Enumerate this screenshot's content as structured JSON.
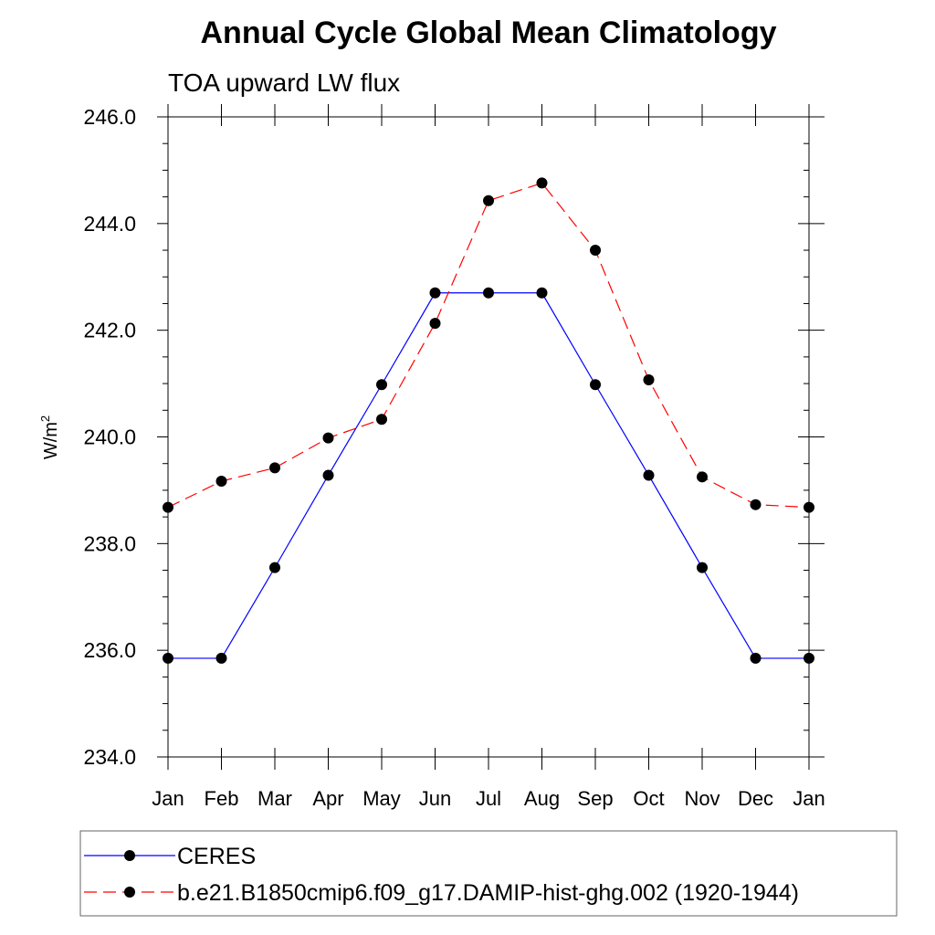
{
  "chart_data": {
    "type": "line",
    "title": "Annual Cycle Global Mean Climatology",
    "subtitle": "TOA upward LW flux",
    "ylabel": "W/m",
    "ylabel_sup": "2",
    "xlabel": "",
    "categories": [
      "Jan",
      "Feb",
      "Mar",
      "Apr",
      "May",
      "Jun",
      "Jul",
      "Aug",
      "Sep",
      "Oct",
      "Nov",
      "Dec",
      "Jan"
    ],
    "ylim": [
      234.0,
      246.0
    ],
    "yticks": [
      234.0,
      236.0,
      238.0,
      240.0,
      242.0,
      244.0,
      246.0
    ],
    "ytick_labels": [
      "234.0",
      "236.0",
      "238.0",
      "240.0",
      "242.0",
      "244.0",
      "246.0"
    ],
    "grid": false,
    "legend_position": "bottom",
    "series": [
      {
        "name": "CERES",
        "color": "#0000ff",
        "dash": "solid",
        "values": [
          235.85,
          235.85,
          237.55,
          239.28,
          240.98,
          242.7,
          242.7,
          242.7,
          240.98,
          239.28,
          237.55,
          235.85,
          235.85
        ]
      },
      {
        "name": "b.e21.B1850cmip6.f09_g17.DAMIP-hist-ghg.002 (1920-1944)",
        "color": "#ff0000",
        "dash": "dashed",
        "values": [
          238.68,
          239.17,
          239.42,
          239.98,
          240.33,
          242.13,
          244.43,
          244.76,
          243.5,
          241.07,
          239.25,
          238.73,
          238.68
        ]
      }
    ]
  }
}
